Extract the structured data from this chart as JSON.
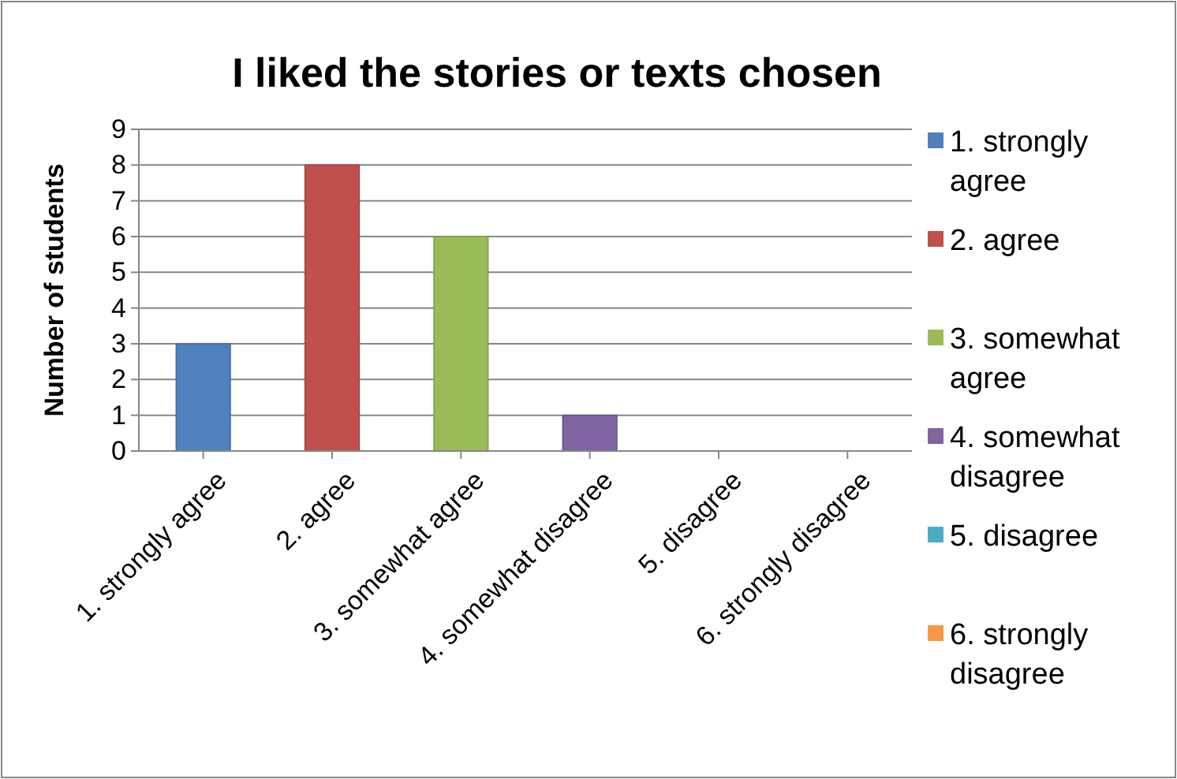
{
  "chart_data": {
    "type": "bar",
    "title": "I liked the stories or texts chosen",
    "ylabel": "Number of students",
    "categories": [
      "1. strongly agree",
      "2. agree",
      "3. somewhat agree",
      "4. somewhat disagree",
      "5. disagree",
      "6. strongly disagree"
    ],
    "stacked": true,
    "series": [
      {
        "name": "1. strongly agree",
        "color": "#4f81bd",
        "values": [
          3,
          null,
          null,
          null,
          null,
          null
        ]
      },
      {
        "name": "2. agree",
        "color": "#c0504d",
        "values": [
          null,
          8,
          null,
          null,
          null,
          null
        ]
      },
      {
        "name": "3. somewhat agree",
        "color": "#9bbb59",
        "values": [
          null,
          null,
          6,
          null,
          null,
          null
        ]
      },
      {
        "name": "4. somewhat disagree",
        "color": "#8064a2",
        "values": [
          null,
          null,
          null,
          1,
          null,
          null
        ]
      },
      {
        "name": "5. disagree",
        "color": "#4bacc6",
        "values": [
          null,
          null,
          null,
          null,
          0,
          null
        ]
      },
      {
        "name": "6. strongly disagree",
        "color": "#f79646",
        "values": [
          null,
          null,
          null,
          null,
          null,
          0
        ]
      }
    ],
    "ylim": [
      0,
      9
    ],
    "yticks": [
      0,
      1,
      2,
      3,
      4,
      5,
      6,
      7,
      8,
      9
    ],
    "grid": "y",
    "legend": "right"
  }
}
